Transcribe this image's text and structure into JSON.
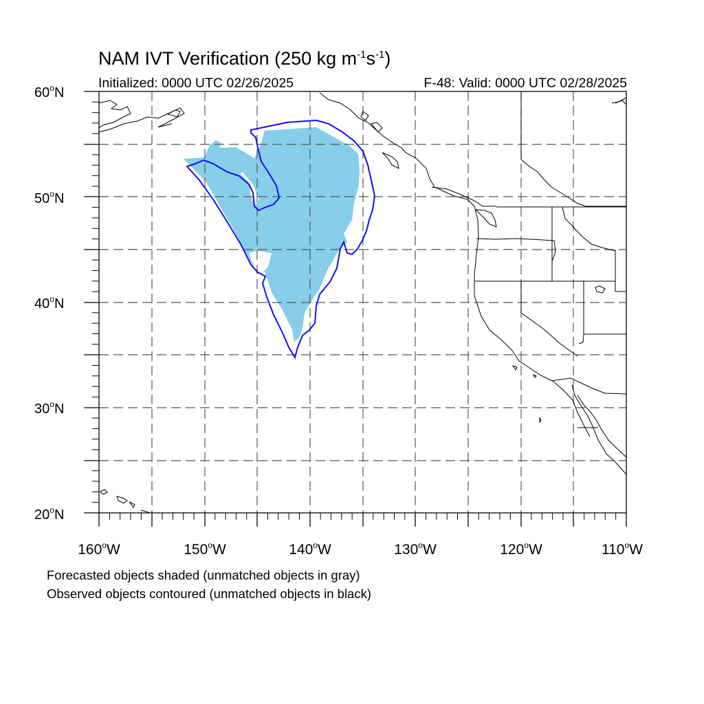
{
  "title": {
    "main": "NAM IVT Verification (250 kg m",
    "sup1": "-1",
    "mid": "s",
    "sup2": "-1",
    "end": ")"
  },
  "subtitle_left": "Initialized: 0000 UTC 02/26/2025",
  "subtitle_right": "F-48: Valid: 0000 UTC 02/28/2025",
  "map": {
    "lon_range": [
      -160,
      -110
    ],
    "lat_range": [
      20,
      60
    ],
    "lat_labels": [
      {
        "lat": 60,
        "num": "60",
        "hemi": "N"
      },
      {
        "lat": 50,
        "num": "50",
        "hemi": "N"
      },
      {
        "lat": 40,
        "num": "40",
        "hemi": "N"
      },
      {
        "lat": 30,
        "num": "30",
        "hemi": "N"
      },
      {
        "lat": 20,
        "num": "20",
        "hemi": "N"
      }
    ],
    "lon_labels": [
      {
        "lon": -160,
        "num": "160",
        "hemi": "W"
      },
      {
        "lon": -150,
        "num": "150",
        "hemi": "W"
      },
      {
        "lon": -140,
        "num": "140",
        "hemi": "W"
      },
      {
        "lon": -130,
        "num": "130",
        "hemi": "W"
      },
      {
        "lon": -120,
        "num": "120",
        "hemi": "W"
      },
      {
        "lon": -110,
        "num": "110",
        "hemi": "W"
      }
    ],
    "colors": {
      "forecast_fill": "#87ceeb",
      "observed_contour": "#1010ee",
      "coastline": "#000000",
      "grid": "#555555"
    }
  },
  "footnote_1": "Forecasted objects shaded (unmatched objects in gray)",
  "footnote_2": "Observed objects contoured (unmatched objects in black)"
}
